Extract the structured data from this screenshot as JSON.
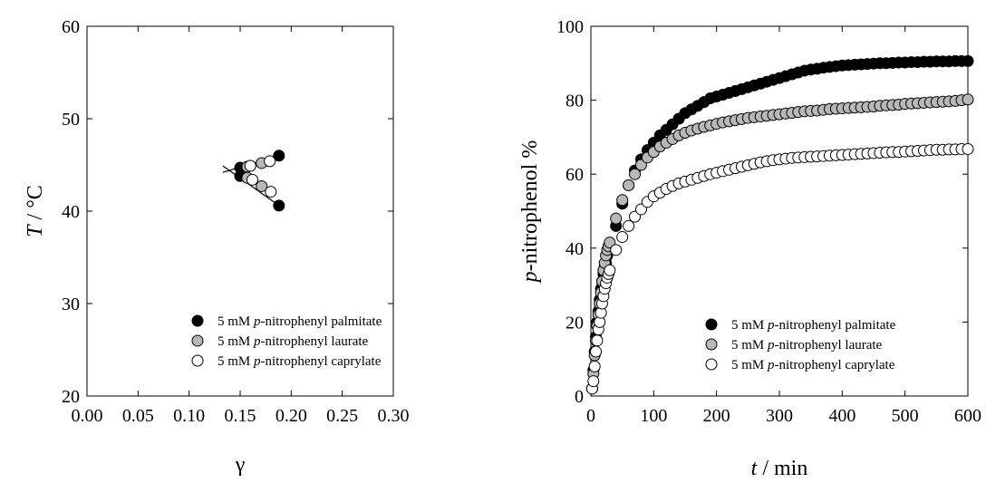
{
  "chart_data": [
    {
      "type": "scatter",
      "xlabel": "γ",
      "ylabel": {
        "italic": "T",
        "rest": " / °C"
      },
      "xlim": [
        0,
        0.3
      ],
      "ylim": [
        20,
        60
      ],
      "xticks": [
        "0.00",
        "0.05",
        "0.10",
        "0.15",
        "0.20",
        "0.25",
        "0.30"
      ],
      "yticks": [
        "20",
        "30",
        "40",
        "50",
        "60"
      ],
      "legend_position": "bottom-right",
      "fit_lines": [
        {
          "x": [
            0.133,
            0.188
          ],
          "y": [
            44.2,
            46.0
          ]
        },
        {
          "x": [
            0.133,
            0.188
          ],
          "y": [
            44.9,
            40.6
          ]
        }
      ],
      "series": [
        {
          "name": {
            "pre": "5 mM ",
            "italic": "p",
            "post": "-nitrophenyl palmitate"
          },
          "fill": "#000000",
          "points": [
            [
              0.15,
              44.7
            ],
            [
              0.15,
              43.8
            ],
            [
              0.188,
              46.0
            ],
            [
              0.188,
              40.6
            ]
          ]
        },
        {
          "name": {
            "pre": "5 mM ",
            "italic": "p",
            "post": "-nitrophenyl laurate"
          },
          "fill": "#b8b8b8",
          "points": [
            [
              0.157,
              44.8
            ],
            [
              0.157,
              43.6
            ],
            [
              0.171,
              45.2
            ],
            [
              0.171,
              42.7
            ]
          ]
        },
        {
          "name": {
            "pre": "5 mM ",
            "italic": "p",
            "post": "-nitrophenyl caprylate"
          },
          "fill": "#ffffff",
          "points": [
            [
              0.16,
              44.9
            ],
            [
              0.162,
              43.4
            ],
            [
              0.179,
              45.4
            ],
            [
              0.18,
              42.1
            ]
          ]
        }
      ]
    },
    {
      "type": "scatter",
      "xlabel": {
        "italic": "t",
        "rest": " / min"
      },
      "ylabel": {
        "italic": "p",
        "rest": "-nitrophenol %"
      },
      "xlim": [
        0,
        600
      ],
      "ylim": [
        0,
        100
      ],
      "xticks": [
        "0",
        "100",
        "200",
        "300",
        "400",
        "500",
        "600"
      ],
      "yticks": [
        "0",
        "20",
        "40",
        "60",
        "80",
        "100"
      ],
      "legend_position": "bottom-right",
      "series": [
        {
          "name": {
            "pre": "5 mM ",
            "italic": "p",
            "post": "-nitrophenyl palmitate"
          },
          "fill": "#000000",
          "x": [
            2,
            4,
            6,
            8,
            10,
            12,
            14,
            16,
            18,
            20,
            22,
            24,
            26,
            28,
            30,
            40,
            50,
            60,
            70,
            80,
            90,
            100,
            110,
            120,
            130,
            140,
            150,
            160,
            170,
            180,
            190,
            200,
            210,
            220,
            230,
            240,
            250,
            260,
            270,
            280,
            290,
            300,
            310,
            320,
            330,
            340,
            350,
            360,
            370,
            380,
            390,
            400,
            410,
            420,
            430,
            440,
            450,
            460,
            470,
            480,
            490,
            500,
            510,
            520,
            530,
            540,
            550,
            560,
            570,
            580,
            590,
            600
          ],
          "y": [
            2,
            7,
            12,
            16,
            20,
            23,
            26,
            29,
            31,
            33,
            35,
            36,
            38,
            39,
            40,
            46,
            52,
            57,
            61,
            64,
            66.5,
            68.5,
            70.5,
            72,
            73.5,
            75,
            76.5,
            77.5,
            78.5,
            79.5,
            80.5,
            81,
            81.5,
            82,
            82.5,
            83,
            83.5,
            84,
            84.5,
            85,
            85.5,
            86,
            86.5,
            87,
            87.5,
            88,
            88.3,
            88.5,
            88.8,
            89,
            89.2,
            89.4,
            89.5,
            89.6,
            89.7,
            89.8,
            89.9,
            90,
            90,
            90.1,
            90.2,
            90.2,
            90.3,
            90.3,
            90.4,
            90.4,
            90.5,
            90.5,
            90.5,
            90.6,
            90.6,
            90.6
          ]
        },
        {
          "name": {
            "pre": "5 mM ",
            "italic": "p",
            "post": "-nitrophenyl laurate"
          },
          "fill": "#b8b8b8",
          "x": [
            2,
            4,
            6,
            8,
            10,
            12,
            14,
            16,
            18,
            20,
            22,
            24,
            26,
            28,
            30,
            40,
            50,
            60,
            70,
            80,
            90,
            100,
            110,
            120,
            130,
            140,
            150,
            160,
            170,
            180,
            190,
            200,
            210,
            220,
            230,
            240,
            250,
            260,
            270,
            280,
            290,
            300,
            310,
            320,
            330,
            340,
            350,
            360,
            370,
            380,
            390,
            400,
            410,
            420,
            430,
            440,
            450,
            460,
            470,
            480,
            490,
            500,
            510,
            520,
            530,
            540,
            550,
            560,
            570,
            580,
            590,
            600
          ],
          "y": [
            2,
            6,
            11,
            15,
            19,
            22,
            25,
            28,
            31,
            34,
            36,
            38,
            39.5,
            40.5,
            41.5,
            48,
            53,
            57,
            60,
            62.5,
            64.5,
            66,
            67.5,
            68.5,
            69.5,
            70.5,
            71.2,
            71.8,
            72.3,
            72.8,
            73.2,
            73.6,
            74,
            74.3,
            74.6,
            74.9,
            75.2,
            75.4,
            75.6,
            75.8,
            76,
            76.2,
            76.4,
            76.6,
            76.8,
            77,
            77.1,
            77.2,
            77.4,
            77.6,
            77.7,
            77.8,
            77.9,
            78,
            78.1,
            78.2,
            78.3,
            78.5,
            78.6,
            78.7,
            78.8,
            79,
            79.1,
            79.2,
            79.3,
            79.4,
            79.5,
            79.6,
            79.7,
            79.8,
            80,
            80.2
          ]
        },
        {
          "name": {
            "pre": "5 mM ",
            "italic": "p",
            "post": "-nitrophenyl caprylate"
          },
          "fill": "#ffffff",
          "x": [
            2,
            4,
            6,
            8,
            10,
            12,
            14,
            16,
            18,
            20,
            22,
            24,
            26,
            28,
            30,
            40,
            50,
            60,
            70,
            80,
            90,
            100,
            110,
            120,
            130,
            140,
            150,
            160,
            170,
            180,
            190,
            200,
            210,
            220,
            230,
            240,
            250,
            260,
            270,
            280,
            290,
            300,
            310,
            320,
            330,
            340,
            350,
            360,
            370,
            380,
            390,
            400,
            410,
            420,
            430,
            440,
            450,
            460,
            470,
            480,
            490,
            500,
            510,
            520,
            530,
            540,
            550,
            560,
            570,
            580,
            590,
            600
          ],
          "y": [
            2,
            4,
            8,
            12,
            15,
            18,
            20,
            22.5,
            25,
            27,
            29,
            30.5,
            32,
            33,
            34,
            39.5,
            43,
            46,
            48.5,
            50.5,
            52.5,
            54,
            55,
            56,
            56.8,
            57.5,
            58,
            58.5,
            59,
            59.5,
            60,
            60.4,
            60.8,
            61.2,
            61.6,
            62,
            62.4,
            62.8,
            63.2,
            63.5,
            63.8,
            64,
            64.2,
            64.4,
            64.5,
            64.6,
            64.7,
            64.8,
            64.9,
            65,
            65.1,
            65.2,
            65.3,
            65.4,
            65.5,
            65.6,
            65.7,
            65.8,
            65.9,
            66,
            66,
            66.1,
            66.2,
            66.3,
            66.4,
            66.5,
            66.6,
            66.6,
            66.7,
            66.7,
            66.8,
            66.8
          ]
        }
      ]
    }
  ]
}
